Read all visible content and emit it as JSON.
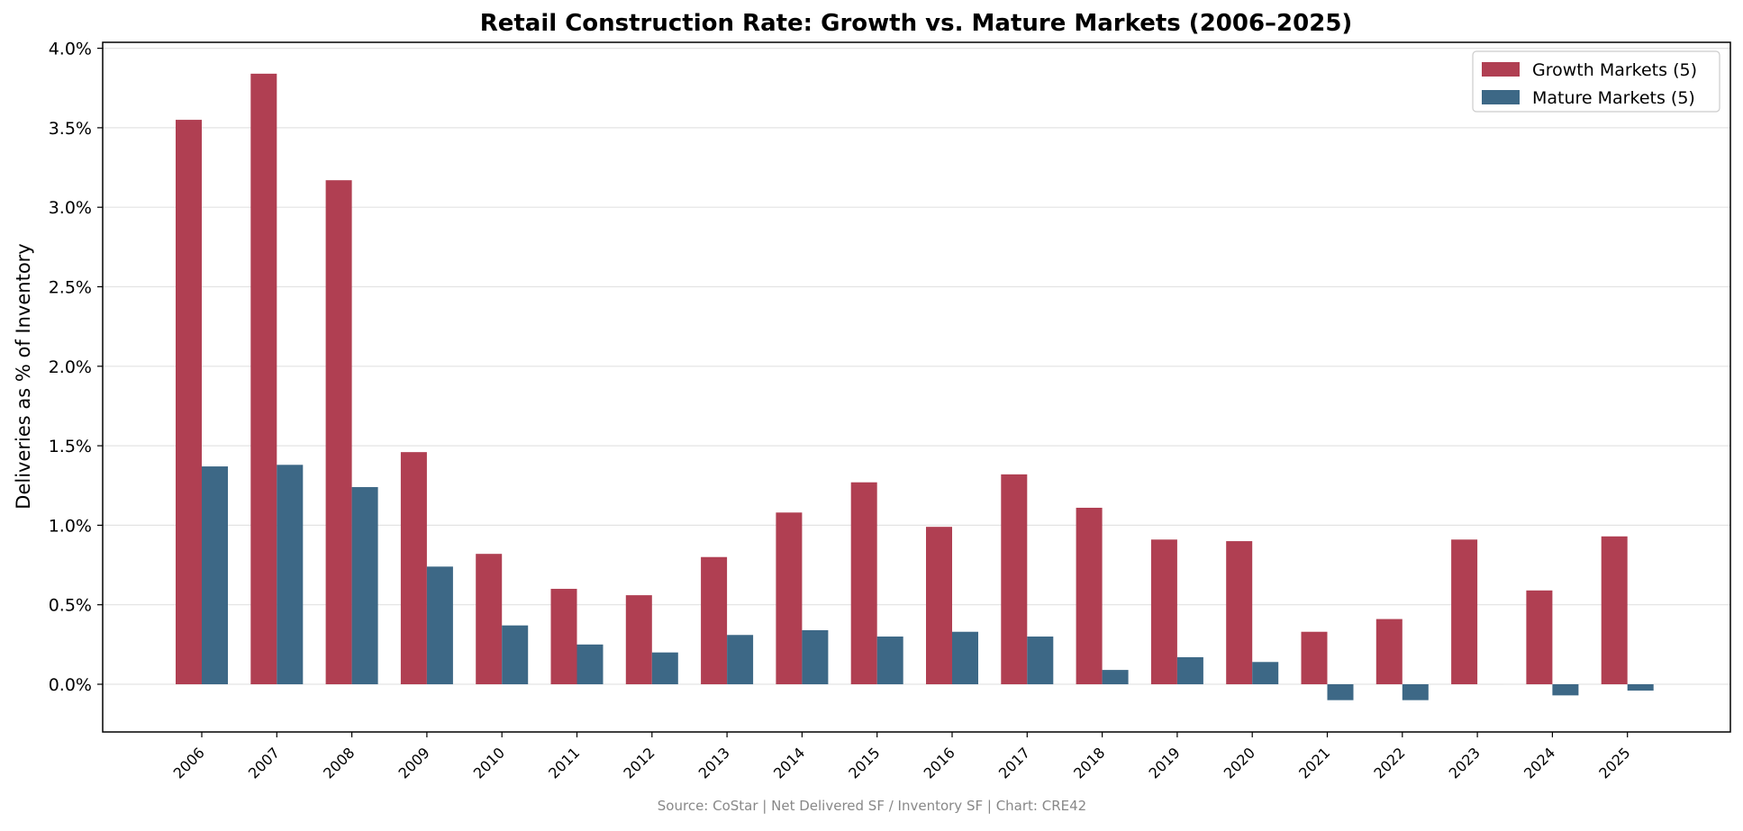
{
  "chart_data": {
    "type": "bar",
    "title": "Retail Construction Rate: Growth vs. Mature Markets (2006–2025)",
    "xlabel": "",
    "ylabel": "Deliveries as % of Inventory",
    "source_note": "Source: CoStar | Net Delivered SF / Inventory SF | Chart: CRE42",
    "ylim": [
      -0.3,
      4.03
    ],
    "yticks": [
      0.0,
      0.5,
      1.0,
      1.5,
      2.0,
      2.5,
      3.0,
      3.5,
      4.0
    ],
    "ytick_labels": [
      "0.0%",
      "0.5%",
      "1.0%",
      "1.5%",
      "2.0%",
      "2.5%",
      "3.0%",
      "3.5%",
      "4.0%"
    ],
    "grid": "y",
    "legend_position": "top-right",
    "categories": [
      "2006",
      "2007",
      "2008",
      "2009",
      "2010",
      "2011",
      "2012",
      "2013",
      "2014",
      "2015",
      "2016",
      "2017",
      "2018",
      "2019",
      "2020",
      "2021",
      "2022",
      "2023",
      "2024",
      "2025"
    ],
    "series": [
      {
        "name": "Growth Markets (5)",
        "color": "#b03f52",
        "values": [
          3.55,
          3.84,
          3.17,
          1.46,
          0.82,
          0.6,
          0.56,
          0.8,
          1.08,
          1.27,
          0.99,
          1.32,
          1.11,
          0.91,
          0.9,
          0.33,
          0.41,
          0.91,
          0.59,
          0.93
        ]
      },
      {
        "name": "Mature Markets (5)",
        "color": "#3d6886",
        "values": [
          1.37,
          1.38,
          1.24,
          0.74,
          0.37,
          0.25,
          0.2,
          0.31,
          0.34,
          0.3,
          0.33,
          0.3,
          0.09,
          0.17,
          0.14,
          -0.1,
          -0.1,
          0.0,
          -0.07,
          -0.04
        ]
      }
    ]
  }
}
